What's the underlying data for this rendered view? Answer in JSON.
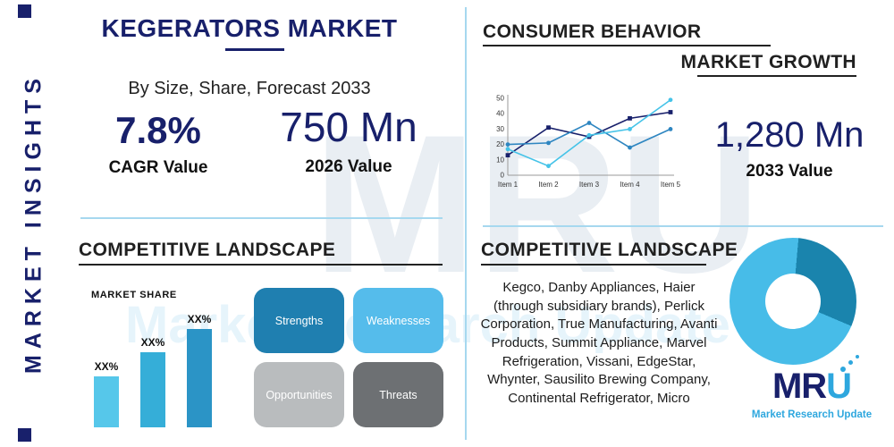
{
  "colors": {
    "navy": "#18206b",
    "accent_blue": "#2ea7de",
    "divider": "#a6d8ef",
    "underline": "#222222",
    "swot": [
      "#1f7fb0",
      "#55bceb",
      "#b9bcbe",
      "#6d7073"
    ]
  },
  "sidebar": {
    "label": "MARKET INSIGHTS"
  },
  "header": {
    "title": "KEGERATORS MARKET",
    "subtitle": "By Size, Share, Forecast 2033"
  },
  "stats": {
    "cagr": {
      "value": "7.8%",
      "label": "CAGR Value"
    },
    "y2026": {
      "value": "750 Mn",
      "label": "2026 Value"
    },
    "y2033": {
      "value": "1,280 Mn",
      "label": "2033 Value"
    }
  },
  "consumer_behavior": {
    "title": "CONSUMER BEHAVIOR",
    "subtitle": "MARKET GROWTH"
  },
  "competitive_left": {
    "title": "COMPETITIVE LANDSCAPE",
    "market_share_label": "MARKET SHARE",
    "swot": [
      "Strengths",
      "Weaknesses",
      "Opportunities",
      "Threats"
    ]
  },
  "competitive_right": {
    "title": "COMPETITIVE LANDSCAPE",
    "companies": "Kegco, Danby Appliances, Haier (through subsidiary brands), Perlick Corporation, True Manufacturing, Avanti Products, Summit Appliance, Marvel Refrigeration, Vissani, EdgeStar, Whynter, Sausilito Brewing Company, Continental Refrigerator, Micro"
  },
  "logo": {
    "mr": "MR",
    "u": "U",
    "tagline": "Market Research Update"
  },
  "watermark": {
    "big": "MRU",
    "blue": "Market Research Update"
  },
  "chart_data": [
    {
      "type": "line",
      "title": "Consumer Behavior Market Growth",
      "x": [
        "Item 1",
        "Item 2",
        "Item 3",
        "Item 4",
        "Item 5"
      ],
      "series": [
        {
          "name": "series-navy",
          "color": "#18206b",
          "marker": "square",
          "values": [
            13,
            31,
            25,
            37,
            41
          ]
        },
        {
          "name": "series-blue",
          "color": "#2e86c1",
          "marker": "circle",
          "values": [
            20,
            21,
            34,
            18,
            30
          ]
        },
        {
          "name": "series-cyan",
          "color": "#45c3e8",
          "marker": "circle",
          "values": [
            17,
            6,
            26,
            30,
            49
          ]
        }
      ],
      "ylim": [
        0,
        50
      ],
      "yticks": [
        0,
        10,
        20,
        30,
        40,
        50
      ],
      "grid": false,
      "legend": "none"
    },
    {
      "type": "bar",
      "title": "Market Share",
      "categories": [
        "XX%",
        "XX%",
        "XX%"
      ],
      "values": [
        34,
        50,
        65
      ],
      "colors": [
        "#56c7ea",
        "#35aed8",
        "#2b94c6"
      ],
      "ylim": [
        0,
        70
      ]
    },
    {
      "type": "pie",
      "title": "Competitive landscape donut",
      "values": [
        30,
        70
      ],
      "colors": [
        "#1a84ad",
        "#47bce8"
      ],
      "start_angle": 5,
      "donut": true
    }
  ]
}
